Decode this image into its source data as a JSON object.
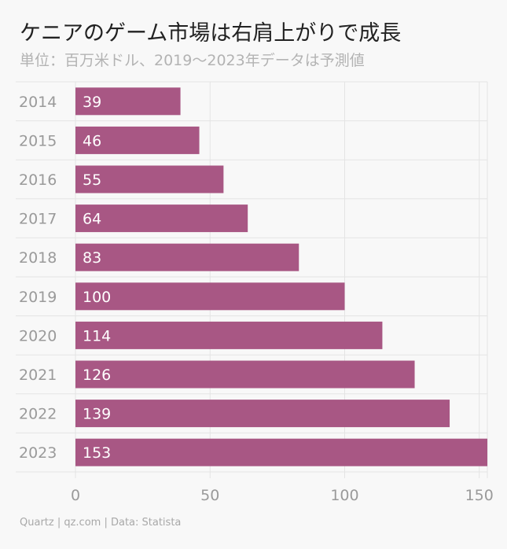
{
  "title": "ケニアのゲーム市場は右肩上がりで成長",
  "subtitle": "単位：百万米ドル、2019〜2023年データは予測値",
  "source": "Quartz | qz.com | Data: Statista",
  "colors": {
    "bar": "#a85784",
    "grid": "#e4e4e4",
    "label": "#9a9a9a",
    "value_text": "#ffffff"
  },
  "chart_data": {
    "type": "bar",
    "orientation": "horizontal",
    "categories": [
      "2014",
      "2015",
      "2016",
      "2017",
      "2018",
      "2019",
      "2020",
      "2021",
      "2022",
      "2023"
    ],
    "values": [
      39,
      46,
      55,
      64,
      83,
      100,
      114,
      126,
      139,
      153
    ],
    "xlim": [
      0,
      153
    ],
    "xticks": [
      0,
      50,
      100,
      150
    ],
    "grid": true,
    "data_labels": true
  }
}
